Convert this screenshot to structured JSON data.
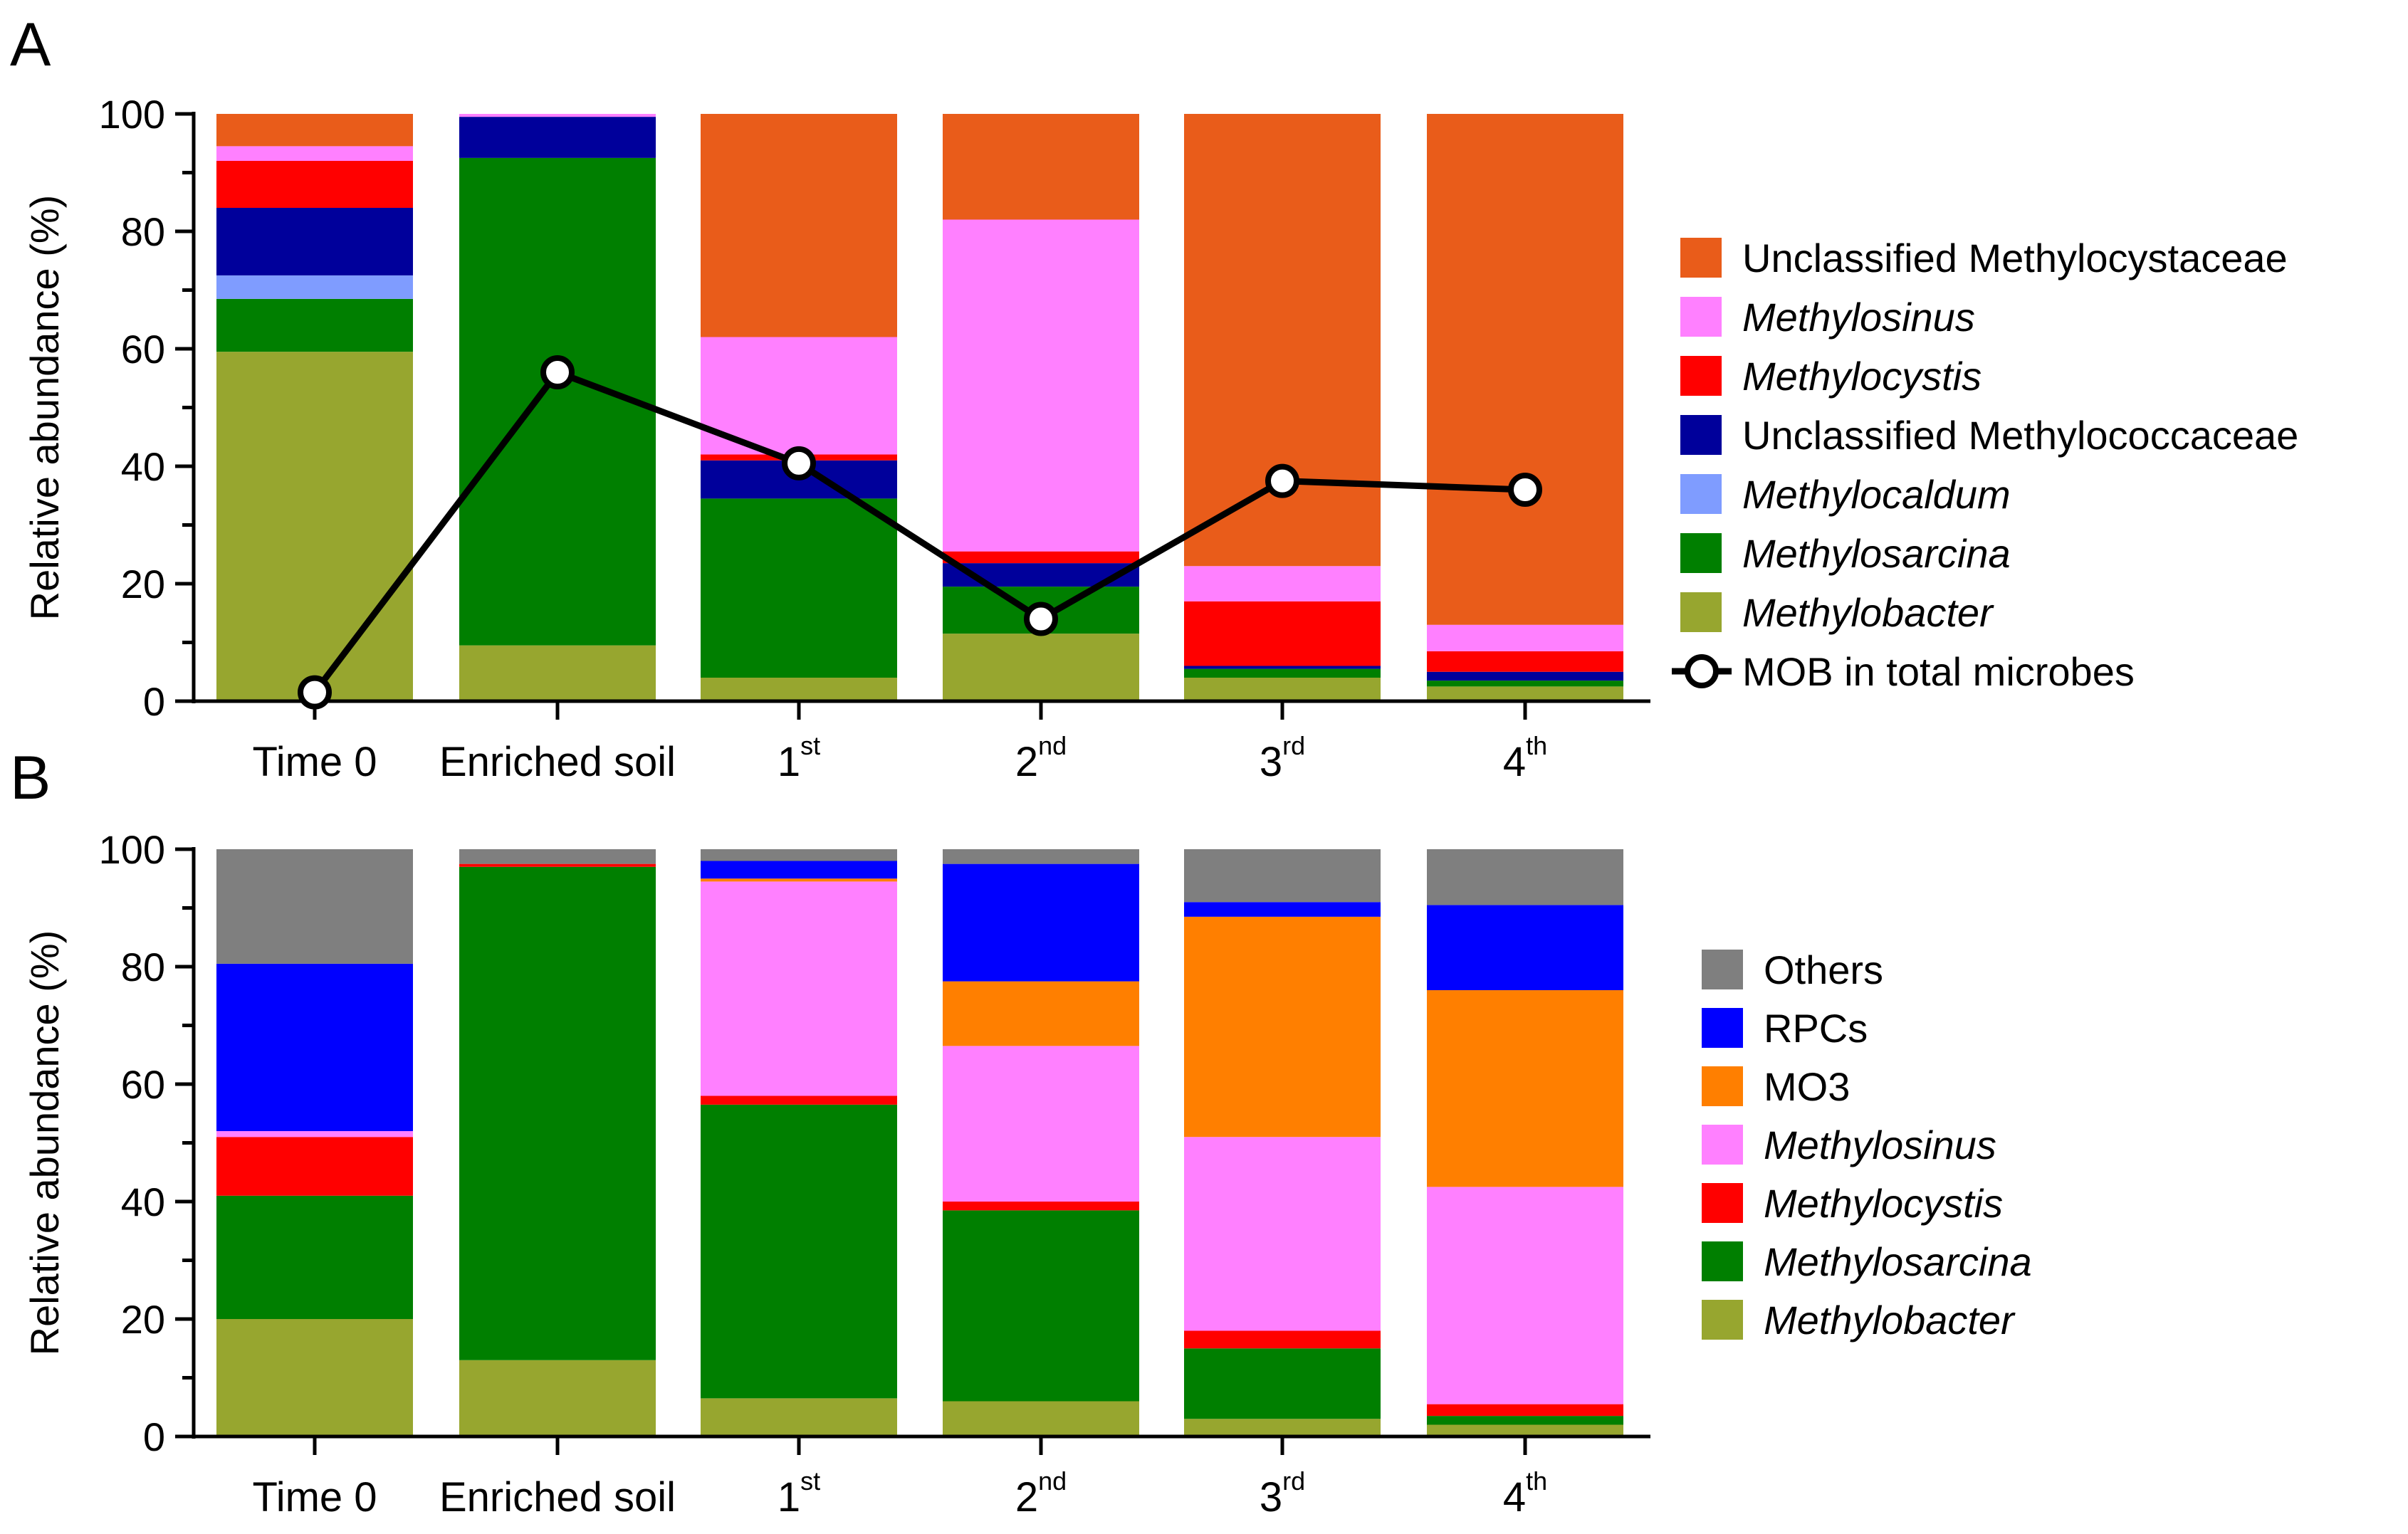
{
  "panels": [
    {
      "letter": "A",
      "ylabel": "Relative abundance (%)",
      "yticks": [
        "0",
        "20",
        "40",
        "60",
        "80",
        "100"
      ],
      "categories": [
        {
          "base": "Time 0",
          "sup": ""
        },
        {
          "base": "Enriched soil",
          "sup": ""
        },
        {
          "base": "1",
          "sup": "st"
        },
        {
          "base": "2",
          "sup": "nd"
        },
        {
          "base": "3",
          "sup": "rd"
        },
        {
          "base": "4",
          "sup": "th"
        }
      ],
      "legend": [
        {
          "label": "Unclassified Methylocystaceae",
          "color": "#E95C1A",
          "italic": false
        },
        {
          "label": "Methylosinus",
          "color": "#FF80FF",
          "italic": true
        },
        {
          "label": "Methylocystis",
          "color": "#FF0000",
          "italic": true
        },
        {
          "label": "Unclassified Methylococcaceae",
          "color": "#00009B",
          "italic": false
        },
        {
          "label": "Methylocaldum",
          "color": "#7F9CFF",
          "italic": true
        },
        {
          "label": "Methylosarcina",
          "color": "#007F00",
          "italic": true
        },
        {
          "label": "Methylobacter",
          "color": "#97A62F",
          "italic": true
        }
      ],
      "line_label": "MOB in total microbes"
    },
    {
      "letter": "B",
      "ylabel": "Relative abundance (%)",
      "yticks": [
        "0",
        "20",
        "40",
        "60",
        "80",
        "100"
      ],
      "categories": [
        {
          "base": "Time 0",
          "sup": ""
        },
        {
          "base": "Enriched soil",
          "sup": ""
        },
        {
          "base": "1",
          "sup": "st"
        },
        {
          "base": "2",
          "sup": "nd"
        },
        {
          "base": "3",
          "sup": "rd"
        },
        {
          "base": "4",
          "sup": "th"
        }
      ],
      "legend": [
        {
          "label": "Others",
          "color": "#7F7F7F",
          "italic": false
        },
        {
          "label": "RPCs",
          "color": "#0000FF",
          "italic": false
        },
        {
          "label": "MO3",
          "color": "#FF7F00",
          "italic": false
        },
        {
          "label": "Methylosinus",
          "color": "#FF80FF",
          "italic": true
        },
        {
          "label": "Methylocystis",
          "color": "#FF0000",
          "italic": true
        },
        {
          "label": "Methylosarcina",
          "color": "#007F00",
          "italic": true
        },
        {
          "label": "Methylobacter",
          "color": "#97A62F",
          "italic": true
        }
      ]
    }
  ],
  "chart_data": [
    {
      "type": "bar",
      "stacked": true,
      "title": "A",
      "xlabel": "",
      "ylabel": "Relative abundance (%)",
      "ylim": [
        0,
        100
      ],
      "categories": [
        "Time 0",
        "Enriched soil",
        "1st",
        "2nd",
        "3rd",
        "4th"
      ],
      "series": [
        {
          "name": "Methylobacter",
          "color": "#97A62F",
          "values": [
            59.5,
            9.5,
            4.0,
            11.5,
            4.0,
            2.5
          ]
        },
        {
          "name": "Methylosarcina",
          "color": "#007F00",
          "values": [
            9.0,
            83.0,
            30.5,
            8.0,
            1.5,
            1.0
          ]
        },
        {
          "name": "Methylocaldum",
          "color": "#7F9CFF",
          "values": [
            4.0,
            0.0,
            0.0,
            0.0,
            0.0,
            0.0
          ]
        },
        {
          "name": "Unclassified Methylococcaceae",
          "color": "#00009B",
          "values": [
            11.5,
            7.0,
            6.5,
            4.0,
            0.5,
            1.5
          ]
        },
        {
          "name": "Methylocystis",
          "color": "#FF0000",
          "values": [
            8.0,
            0.0,
            1.0,
            2.0,
            11.0,
            3.5
          ]
        },
        {
          "name": "Methylosinus",
          "color": "#FF80FF",
          "values": [
            2.5,
            0.5,
            20.0,
            56.5,
            6.0,
            4.5
          ]
        },
        {
          "name": "Unclassified Methylocystaceae",
          "color": "#E95C1A",
          "values": [
            5.5,
            0.0,
            38.0,
            18.0,
            77.0,
            87.0
          ]
        }
      ],
      "line": {
        "name": "MOB in total microbes",
        "values": [
          1.5,
          56.0,
          40.5,
          14.0,
          37.5,
          36.0
        ]
      }
    },
    {
      "type": "bar",
      "stacked": true,
      "title": "B",
      "xlabel": "",
      "ylabel": "Relative abundance (%)",
      "ylim": [
        0,
        100
      ],
      "categories": [
        "Time 0",
        "Enriched soil",
        "1st",
        "2nd",
        "3rd",
        "4th"
      ],
      "series": [
        {
          "name": "Methylobacter",
          "color": "#97A62F",
          "values": [
            20.0,
            13.0,
            6.5,
            6.0,
            3.0,
            2.0
          ]
        },
        {
          "name": "Methylosarcina",
          "color": "#007F00",
          "values": [
            21.0,
            84.0,
            50.0,
            32.5,
            12.0,
            1.5
          ]
        },
        {
          "name": "Methylocystis",
          "color": "#FF0000",
          "values": [
            10.0,
            0.5,
            1.5,
            1.5,
            3.0,
            2.0
          ]
        },
        {
          "name": "Methylosinus",
          "color": "#FF80FF",
          "values": [
            1.0,
            0.0,
            36.5,
            26.5,
            33.0,
            37.0
          ]
        },
        {
          "name": "MO3",
          "color": "#FF7F00",
          "values": [
            0.0,
            0.0,
            0.5,
            11.0,
            37.5,
            33.5
          ]
        },
        {
          "name": "RPCs",
          "color": "#0000FF",
          "values": [
            28.5,
            0.0,
            3.0,
            20.0,
            2.5,
            14.5
          ]
        },
        {
          "name": "Others",
          "color": "#7F7F7F",
          "values": [
            19.5,
            2.5,
            2.0,
            2.5,
            9.0,
            9.5
          ]
        }
      ]
    }
  ]
}
